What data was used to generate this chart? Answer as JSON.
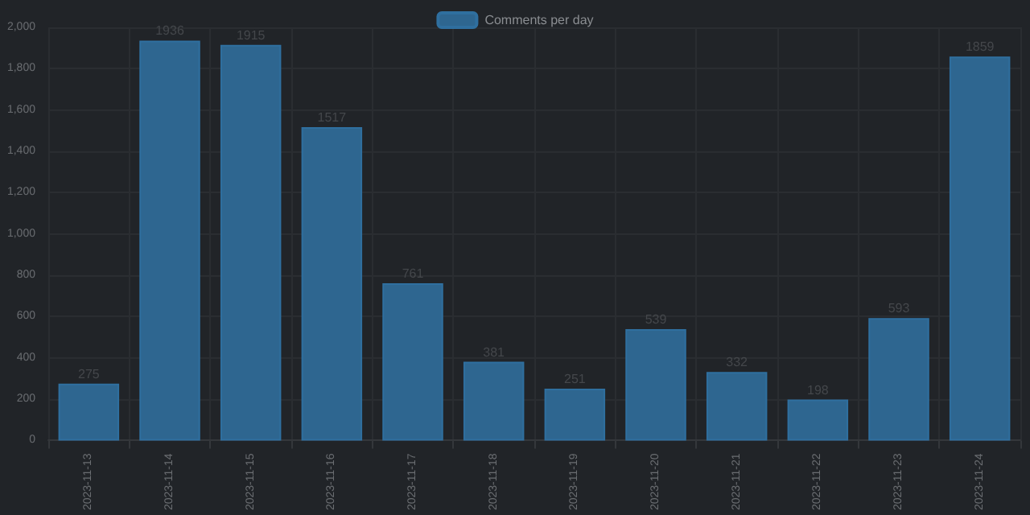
{
  "chart_data": {
    "type": "bar",
    "categories": [
      "2023-11-13",
      "2023-11-14",
      "2023-11-15",
      "2023-11-16",
      "2023-11-17",
      "2023-11-18",
      "2023-11-19",
      "2023-11-20",
      "2023-11-21",
      "2023-11-22",
      "2023-11-23",
      "2023-11-24"
    ],
    "series": [
      {
        "name": "Comments per day",
        "color": "#2e6690",
        "values": [
          275,
          1936,
          1915,
          1517,
          761,
          381,
          251,
          539,
          332,
          198,
          593,
          1859
        ]
      }
    ],
    "ylim": [
      0,
      2000
    ],
    "yticks": [
      0,
      200,
      400,
      600,
      800,
      {
        "value": 1000,
        "label": "1,000"
      },
      {
        "value": 1200,
        "label": "1,200"
      },
      {
        "value": 1400,
        "label": "1,400"
      },
      {
        "value": 1600,
        "label": "1,600"
      },
      {
        "value": 1800,
        "label": "1,800"
      },
      {
        "value": 2000,
        "label": "2,000"
      }
    ],
    "grid": true,
    "legend": "top",
    "data_labels": true
  }
}
